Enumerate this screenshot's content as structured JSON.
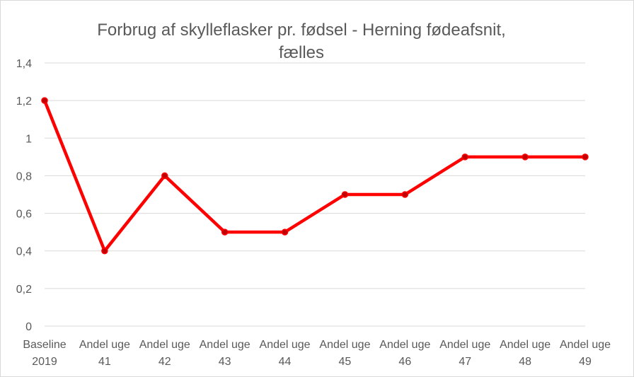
{
  "chart_data": {
    "type": "line",
    "title": "Forbrug af skylleflasker pr. fødsel - Herning fødeafsnit, fælles",
    "title_lines": [
      "Forbrug af skylleflasker pr. fødsel - Herning fødeafsnit,",
      "fælles"
    ],
    "categories": [
      [
        "Baseline",
        "2019"
      ],
      [
        "Andel uge",
        "41"
      ],
      [
        "Andel uge",
        "42"
      ],
      [
        "Andel uge",
        "43"
      ],
      [
        "Andel uge",
        "44"
      ],
      [
        "Andel uge",
        "45"
      ],
      [
        "Andel uge",
        "46"
      ],
      [
        "Andel uge",
        "47"
      ],
      [
        "Andel uge",
        "48"
      ],
      [
        "Andel uge",
        "49"
      ]
    ],
    "series": [
      {
        "values": [
          1.2,
          0.4,
          0.8,
          0.5,
          0.5,
          0.7,
          0.7,
          0.9,
          0.9,
          0.9
        ],
        "color": "#ff0000"
      }
    ],
    "ylim": [
      0,
      1.4
    ],
    "yticks": [
      "0",
      "0,2",
      "0,4",
      "0,6",
      "0,8",
      "1",
      "1,2",
      "1,4"
    ],
    "xlabel": "",
    "ylabel": "",
    "grid": true,
    "legend": "none",
    "colors": {
      "line": "#ff0000",
      "marker_fill": "#c00000",
      "grid": "#d9d9d9",
      "text": "#595959"
    }
  }
}
